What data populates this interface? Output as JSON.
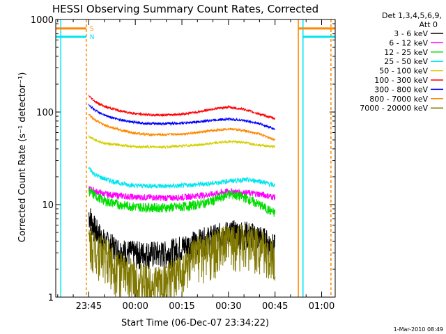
{
  "chart_data": {
    "type": "line",
    "title": "HESSI Observing Summary Count Rates, Corrected",
    "xlabel": "Start Time (06-Dec-07 23:34:22)",
    "ylabel": "Corrected Count Rate (s⁻¹ detector⁻¹)",
    "yscale": "log",
    "ylim": [
      1,
      1000
    ],
    "xlim_minutes_after_2330": [
      4.37,
      94.37
    ],
    "x_ticks": [
      {
        "label": "23:45",
        "minute": 15
      },
      {
        "label": "00:00",
        "minute": 30
      },
      {
        "label": "00:15",
        "minute": 45
      },
      {
        "label": "00:30",
        "minute": 60
      },
      {
        "label": "00:45",
        "minute": 75
      },
      {
        "label": "01:00",
        "minute": 90
      }
    ],
    "y_ticks": [
      {
        "label": "1",
        "value": 1
      },
      {
        "label": "10",
        "value": 10
      },
      {
        "label": "100",
        "value": 100
      },
      {
        "label": "1000",
        "value": 1000
      }
    ],
    "legend": {
      "header_line1": "Det 1,3,4,5,6,9,",
      "header_line2": "Att 0",
      "placement": "right",
      "entries": [
        {
          "label": "3 - 6 keV",
          "color": "#000000"
        },
        {
          "label": "6 - 12 keV",
          "color": "#ff00ff"
        },
        {
          "label": "12 - 25 keV",
          "color": "#00dd00"
        },
        {
          "label": "25 - 50 keV",
          "color": "#00e5ee"
        },
        {
          "label": "50 - 100 keV",
          "color": "#d4d000"
        },
        {
          "label": "100 - 300 keV",
          "color": "#ff0000"
        },
        {
          "label": "300 - 800 keV",
          "color": "#0000ff"
        },
        {
          "label": "800 - 7000 keV",
          "color": "#ff8800"
        },
        {
          "label": "7000 - 20000 keV",
          "color": "#807800"
        }
      ]
    },
    "x_minutes": [
      15,
      17,
      20,
      25,
      30,
      35,
      40,
      45,
      50,
      55,
      60,
      65,
      70,
      75
    ],
    "series": [
      {
        "name": "3 - 6 keV",
        "color": "#000000",
        "values": [
          8,
          5.5,
          4,
          3.2,
          3,
          3,
          3,
          3.5,
          4,
          4.5,
          5,
          5,
          4.5,
          3.5
        ]
      },
      {
        "name": "6 - 12 keV",
        "color": "#ff00ff",
        "values": [
          15,
          14,
          13,
          12.5,
          12,
          12,
          11.8,
          12,
          12.5,
          13,
          14,
          13.5,
          13,
          12
        ]
      },
      {
        "name": "12 - 25 keV",
        "color": "#00dd00",
        "values": [
          14,
          12.5,
          11,
          10,
          9.5,
          9.3,
          9.3,
          9.5,
          10,
          11,
          13,
          12,
          10,
          8
        ]
      },
      {
        "name": "25 - 50 keV",
        "color": "#00e5ee",
        "values": [
          25,
          21,
          19,
          17,
          16,
          16,
          15.8,
          16,
          16.5,
          17,
          18,
          18.5,
          18,
          16
        ]
      },
      {
        "name": "50 - 100 keV",
        "color": "#d4d000",
        "values": [
          55,
          50,
          46,
          44,
          42,
          42,
          42,
          43,
          44,
          46,
          48,
          47,
          44,
          42
        ]
      },
      {
        "name": "100 - 300 keV",
        "color": "#ff0000",
        "values": [
          150,
          130,
          115,
          103,
          96,
          93,
          93,
          95,
          100,
          108,
          113,
          107,
          95,
          85
        ]
      },
      {
        "name": "300 - 800 keV",
        "color": "#0000ff",
        "values": [
          120,
          105,
          92,
          83,
          77,
          75,
          75,
          76,
          78,
          82,
          84,
          81,
          75,
          65
        ]
      },
      {
        "name": "800 - 7000 keV",
        "color": "#ff8800",
        "values": [
          95,
          82,
          72,
          64,
          59,
          57,
          57,
          58,
          60,
          63,
          66,
          63,
          58,
          50
        ]
      },
      {
        "name": "7000 - 20000 keV",
        "color": "#807800",
        "values": [
          4,
          3.5,
          3,
          2,
          1.6,
          1.4,
          1.5,
          2,
          3,
          3.3,
          4,
          4.2,
          3.7,
          2.5
        ]
      }
    ],
    "vertical_markers": [
      {
        "minute": 6,
        "color": "#00e5ee"
      },
      {
        "minute": 14.2,
        "color": "#ff8800",
        "dashed": true
      },
      {
        "minute": 82.5,
        "color": "#ff8800"
      },
      {
        "minute": 84,
        "color": "#00e5ee"
      },
      {
        "minute": 93,
        "color": "#ff8800",
        "dashed": true
      }
    ],
    "horizontal_marks": [
      {
        "from_minute": 4.37,
        "to_minute": 14.2,
        "value": 800,
        "color": "#ff8800",
        "label": "S"
      },
      {
        "from_minute": 4.37,
        "to_minute": 14.2,
        "value": 650,
        "color": "#00e5ee",
        "label": "N"
      },
      {
        "from_minute": 82.5,
        "to_minute": 94.37,
        "value": 800,
        "color": "#ff8800"
      },
      {
        "from_minute": 84,
        "to_minute": 94.37,
        "value": 650,
        "color": "#00e5ee"
      }
    ],
    "footer": "1-Mar-2010 08:49"
  }
}
